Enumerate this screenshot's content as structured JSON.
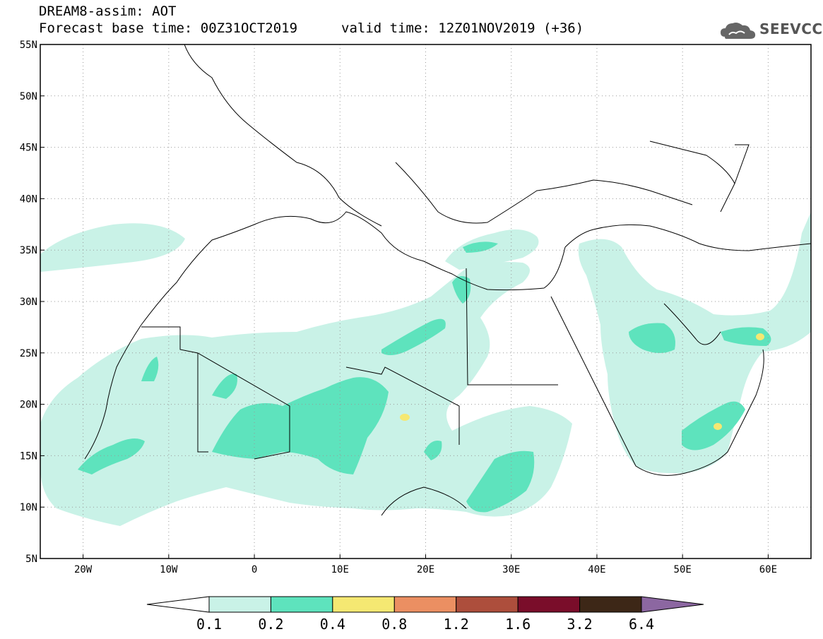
{
  "header": {
    "title": "DREAM8-assim: AOT",
    "base_time": "Forecast base time: 00Z31OCT2019",
    "valid_time": "valid time: 12Z01NOV2019 (+36)",
    "logo_text": "SEEVCCC"
  },
  "map": {
    "lon_range": [
      -25,
      65
    ],
    "lat_range": [
      5,
      55
    ],
    "lon_ticks": [
      {
        "lon": -20,
        "label": "20W"
      },
      {
        "lon": -10,
        "label": "10W"
      },
      {
        "lon": 0,
        "label": "0"
      },
      {
        "lon": 10,
        "label": "10E"
      },
      {
        "lon": 20,
        "label": "20E"
      },
      {
        "lon": 30,
        "label": "30E"
      },
      {
        "lon": 40,
        "label": "40E"
      },
      {
        "lon": 50,
        "label": "50E"
      },
      {
        "lon": 60,
        "label": "60E"
      }
    ],
    "lat_ticks": [
      {
        "lat": 5,
        "label": "5N"
      },
      {
        "lat": 10,
        "label": "10N"
      },
      {
        "lat": 15,
        "label": "15N"
      },
      {
        "lat": 20,
        "label": "20N"
      },
      {
        "lat": 25,
        "label": "25N"
      },
      {
        "lat": 30,
        "label": "30N"
      },
      {
        "lat": 35,
        "label": "35N"
      },
      {
        "lat": 40,
        "label": "40N"
      },
      {
        "lat": 45,
        "label": "45N"
      },
      {
        "lat": 50,
        "label": "50N"
      },
      {
        "lat": 55,
        "label": "55N"
      }
    ],
    "grid": true,
    "grid_style": "dotted"
  },
  "colorbar": {
    "labels": [
      "0.1",
      "0.2",
      "0.4",
      "0.8",
      "1.2",
      "1.6",
      "3.2",
      "6.4"
    ],
    "colors": [
      "#ffffff",
      "#c9f2e7",
      "#5ee3bd",
      "#f5e872",
      "#eb8f62",
      "#ad4e3c",
      "#7a0d2a",
      "#3d2717",
      "#8c67a1"
    ]
  }
}
